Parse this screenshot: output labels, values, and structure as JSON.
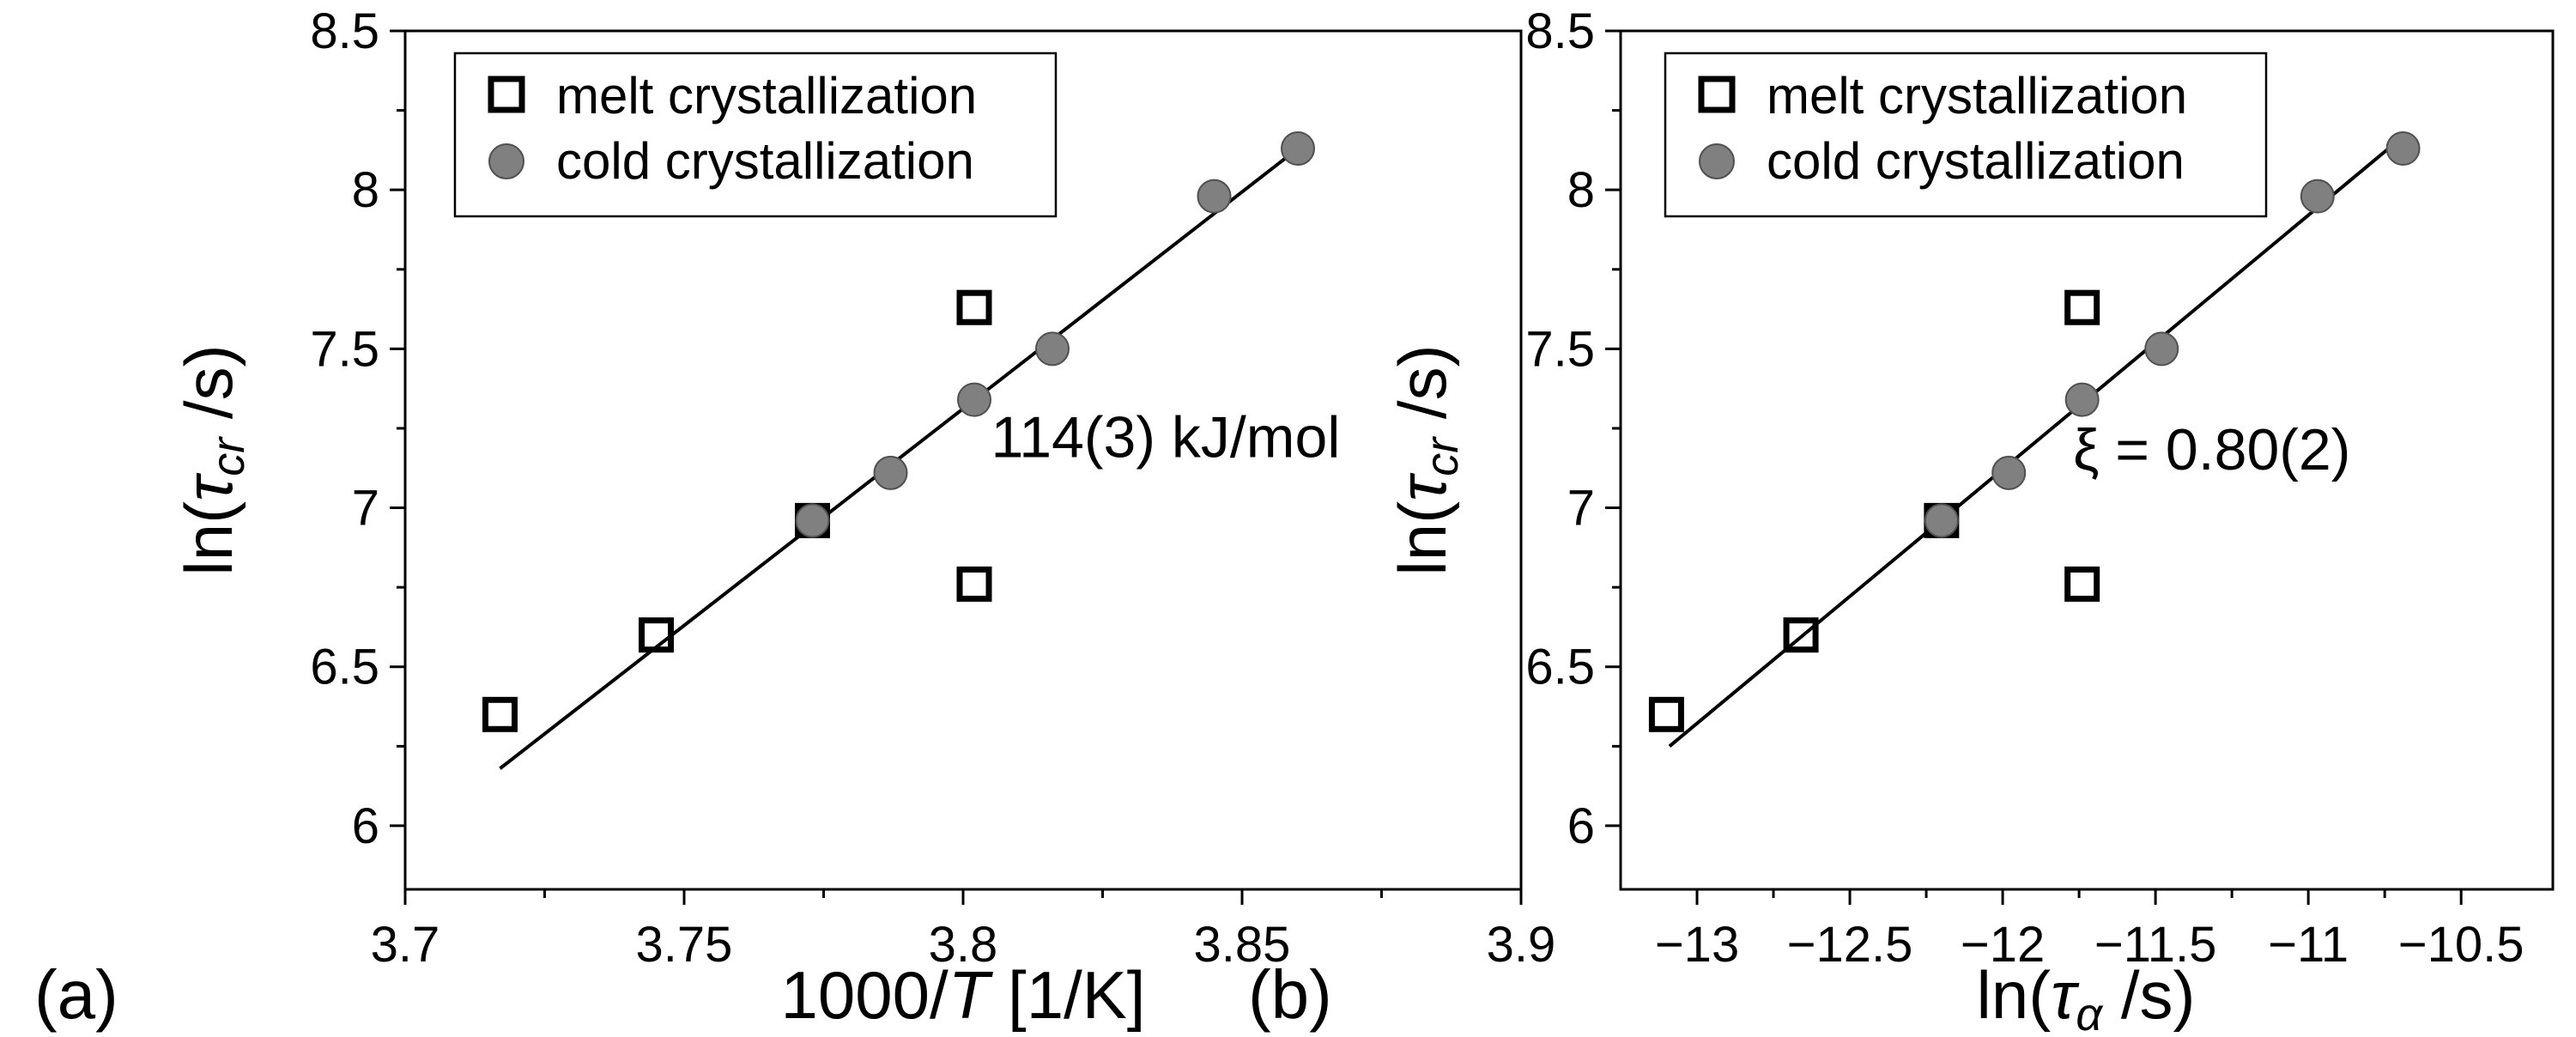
{
  "chart_data": [
    {
      "type": "scatter",
      "panel_label": "(a)",
      "x_title_pre": "1000/",
      "x_title_var": "T",
      "x_title_post": " [1/K]",
      "y_title_pre": "ln(",
      "y_title_var": "τ",
      "y_title_sub": "cr",
      "y_title_post": " /s)",
      "xlim": [
        3.7,
        3.9
      ],
      "ylim": [
        5.8,
        8.5
      ],
      "xticks": [
        3.7,
        3.75,
        3.8,
        3.85,
        3.9
      ],
      "xtick_labels": [
        "3.7",
        "3.75",
        "3.8",
        "3.85",
        "3.9"
      ],
      "yticks": [
        6,
        6.5,
        7,
        7.5,
        8,
        8.5
      ],
      "ytick_labels": [
        "6",
        "6.5",
        "7",
        "7.5",
        "8",
        "8.5"
      ],
      "legend": [
        "melt crystallization",
        "cold crystallization"
      ],
      "legend_position": "top-left",
      "series": [
        {
          "name": "melt crystallization",
          "marker": "open-square",
          "x": [
            3.717,
            3.745,
            3.773,
            3.802,
            3.802
          ],
          "y": [
            6.35,
            6.6,
            6.96,
            7.63,
            6.76
          ]
        },
        {
          "name": "cold crystallization",
          "marker": "filled-circle",
          "x": [
            3.773,
            3.787,
            3.802,
            3.816,
            3.845,
            3.86
          ],
          "y": [
            6.96,
            7.11,
            7.34,
            7.5,
            7.98,
            8.13
          ]
        }
      ],
      "fit": {
        "x": [
          3.717,
          3.86
        ],
        "y": [
          6.18,
          8.13
        ]
      },
      "annotation": "114(3) kJ/mol",
      "annotation_at": {
        "x": 3.805,
        "y": 7.16
      }
    },
    {
      "type": "scatter",
      "panel_label": "(b)",
      "x_title_pre": "ln(",
      "x_title_var": "τ",
      "x_title_sub": "α",
      "x_title_post": " /s)",
      "y_title_pre": "ln(",
      "y_title_var": "τ",
      "y_title_sub": "cr",
      "y_title_post": " /s)",
      "xlim": [
        -13.25,
        -10.2
      ],
      "ylim": [
        5.8,
        8.5
      ],
      "xticks": [
        -13,
        -12.5,
        -12,
        -11.5,
        -11,
        -10.5
      ],
      "xtick_labels": [
        "−13",
        "−12.5",
        "−12",
        "−11.5",
        "−11",
        "−10.5"
      ],
      "yticks": [
        6,
        6.5,
        7,
        7.5,
        8,
        8.5
      ],
      "ytick_labels": [
        "6",
        "6.5",
        "7",
        "7.5",
        "8",
        "8.5"
      ],
      "legend": [
        "melt crystallization",
        "cold crystallization"
      ],
      "legend_position": "top-left",
      "series": [
        {
          "name": "melt crystallization",
          "marker": "open-square",
          "x": [
            -13.1,
            -12.66,
            -12.2,
            -11.74,
            -11.74
          ],
          "y": [
            6.35,
            6.6,
            6.96,
            7.63,
            6.76
          ]
        },
        {
          "name": "cold crystallization",
          "marker": "filled-circle",
          "x": [
            -12.2,
            -11.98,
            -11.74,
            -11.48,
            -10.97,
            -10.69
          ],
          "y": [
            6.96,
            7.11,
            7.34,
            7.5,
            7.98,
            8.13
          ]
        }
      ],
      "fit": {
        "x": [
          -13.09,
          -10.7
        ],
        "y": [
          6.25,
          8.16
        ]
      },
      "annotation": "ξ = 0.80(2)",
      "annotation_at": {
        "x": -11.77,
        "y": 7.12
      }
    }
  ]
}
